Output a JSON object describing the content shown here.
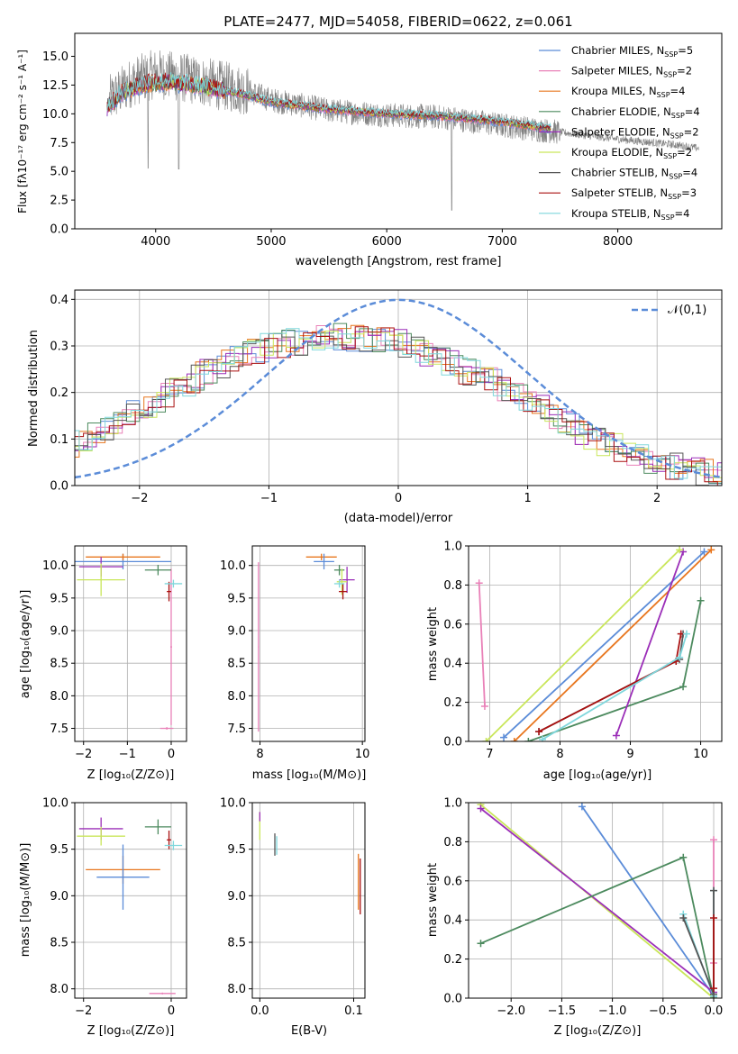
{
  "colors": {
    "chabrier_miles": "#5b8cd8",
    "salpeter_miles": "#e981b8",
    "kroupa_miles": "#e8761e",
    "chabrier_elodie": "#4c8a5e",
    "salpeter_elodie": "#9b2eb8",
    "kroupa_elodie": "#c9e65a",
    "chabrier_stelib": "#555555",
    "salpeter_stelib": "#aa1111",
    "kroupa_stelib": "#7fd7dc",
    "observed": "#808080",
    "normal": "#5b8cd8",
    "grid": "#b0b0b0"
  },
  "chart_data": [
    {
      "id": "spectrum",
      "type": "line",
      "title": "PLATE=2477, MJD=54058, FIBERID=0622, z=0.061",
      "xlabel": "wavelength [Angstrom, rest frame]",
      "ylabel": "Flux [fλ10⁻¹⁷ erg cm⁻² s⁻¹ A⁻¹]",
      "xlim": [
        3300,
        8900
      ],
      "ylim": [
        0,
        17
      ],
      "xticks": [
        4000,
        5000,
        6000,
        7000,
        8000
      ],
      "yticks": [
        0.0,
        2.5,
        5.0,
        7.5,
        10.0,
        12.5,
        15.0
      ],
      "grid": false,
      "legend_position": "top-right",
      "legend": [
        {
          "label": "Chabrier MILES, N",
          "sub": "SSP",
          "n": "=5",
          "color_key": "chabrier_miles"
        },
        {
          "label": "Salpeter MILES, N",
          "sub": "SSP",
          "n": "=2",
          "color_key": "salpeter_miles"
        },
        {
          "label": "Kroupa MILES, N",
          "sub": "SSP",
          "n": "=4",
          "color_key": "kroupa_miles"
        },
        {
          "label": "Chabrier ELODIE, N",
          "sub": "SSP",
          "n": "=4",
          "color_key": "chabrier_elodie"
        },
        {
          "label": "Salpeter ELODIE, N",
          "sub": "SSP",
          "n": "=2",
          "color_key": "salpeter_elodie"
        },
        {
          "label": "Kroupa ELODIE, N",
          "sub": "SSP",
          "n": "=2",
          "color_key": "kroupa_elodie"
        },
        {
          "label": "Chabrier STELIB, N",
          "sub": "SSP",
          "n": "=4",
          "color_key": "chabrier_stelib"
        },
        {
          "label": "Salpeter STELIB, N",
          "sub": "SSP",
          "n": "=3",
          "color_key": "salpeter_stelib"
        },
        {
          "label": "Kroupa STELIB, N",
          "sub": "SSP",
          "n": "=4",
          "color_key": "kroupa_stelib"
        }
      ],
      "observed_trend": {
        "x": [
          3600,
          3800,
          4000,
          4200,
          4500,
          4800,
          5000,
          5500,
          6000,
          6500,
          7000,
          7500,
          8000,
          8500,
          8700
        ],
        "y": [
          11.2,
          12.8,
          13.5,
          13.2,
          12.6,
          12.0,
          11.2,
          10.3,
          9.9,
          9.7,
          9.0,
          8.4,
          7.8,
          7.3,
          7.0
        ]
      },
      "model_trend": {
        "x": [
          3580,
          3700,
          3900,
          4100,
          4400,
          4800,
          5000,
          5500,
          6000,
          6500,
          7000,
          7420
        ],
        "y": [
          10.5,
          11.8,
          12.6,
          12.8,
          12.4,
          11.6,
          11.0,
          10.4,
          10.0,
          9.8,
          9.3,
          8.7
        ]
      }
    },
    {
      "id": "residuals",
      "type": "line",
      "xlabel": "(data-model)/error",
      "ylabel": "Normed distribution",
      "xlim": [
        -2.5,
        2.5
      ],
      "ylim": [
        0,
        0.42
      ],
      "xticks": [
        -2,
        -1,
        0,
        1,
        2
      ],
      "yticks": [
        0.0,
        0.1,
        0.2,
        0.3,
        0.4
      ],
      "grid": true,
      "legend_position": "top-right",
      "legend_label": "𝒩(0,1)",
      "gaussian": {
        "mean": 0,
        "sigma": 1
      },
      "histogram_envelope": {
        "x": [
          -2.5,
          -2.0,
          -1.5,
          -1.0,
          -0.5,
          0.0,
          0.5,
          1.0,
          1.5,
          2.0,
          2.5
        ],
        "y": [
          0.09,
          0.16,
          0.24,
          0.3,
          0.32,
          0.31,
          0.25,
          0.19,
          0.1,
          0.05,
          0.02
        ]
      },
      "bin_width": 0.1
    },
    {
      "id": "age_vs_Z",
      "type": "scatter",
      "xlabel": "Z [log₁₀(Z/Z⊙)]",
      "ylabel": "age  [log₁₀(age/yr)]",
      "xlim": [
        -2.2,
        0.35
      ],
      "ylim": [
        7.3,
        10.3
      ],
      "xticks": [
        -2,
        -1,
        0
      ],
      "yticks": [
        7.5,
        8.0,
        8.5,
        9.0,
        9.5,
        10.0
      ],
      "grid": true,
      "points": [
        {
          "model": "chabrier_miles",
          "x": -1.1,
          "y": 10.06,
          "xerr": 1.1,
          "yerr": 0.12
        },
        {
          "model": "salpeter_miles",
          "x": -0.1,
          "y": 7.5,
          "xerr": 0.15,
          "yerr": 0.02
        },
        {
          "model": "salpeter_miles",
          "x": 0.0,
          "y": 8.75,
          "xerr": 0.02,
          "yerr": 1.2
        },
        {
          "model": "kroupa_miles",
          "x": -1.1,
          "y": 10.13,
          "xerr": 0.85,
          "yerr": 0.05
        },
        {
          "model": "chabrier_elodie",
          "x": -0.3,
          "y": 9.93,
          "xerr": 0.3,
          "yerr": 0.08
        },
        {
          "model": "salpeter_elodie",
          "x": -1.6,
          "y": 9.98,
          "xerr": 0.5,
          "yerr": 0.15
        },
        {
          "model": "kroupa_elodie",
          "x": -1.6,
          "y": 9.78,
          "xerr": 0.55,
          "yerr": 0.25
        },
        {
          "model": "salpeter_stelib",
          "x": -0.05,
          "y": 9.6,
          "xerr": 0.05,
          "yerr": 0.15
        },
        {
          "model": "kroupa_stelib",
          "x": 0.05,
          "y": 9.72,
          "xerr": 0.2,
          "yerr": 0.06
        }
      ]
    },
    {
      "id": "age_vs_mass",
      "type": "scatter",
      "xlabel": "mass [log₁₀(M/M⊙)]",
      "ylabel": "",
      "xlim": [
        7.85,
        10.05
      ],
      "ylim": [
        7.3,
        10.3
      ],
      "xticks": [
        8,
        10
      ],
      "yticks": [
        7.5,
        8.0,
        8.5,
        9.0,
        9.5,
        10.0
      ],
      "grid": true,
      "points": [
        {
          "model": "salpeter_miles",
          "x": 7.97,
          "y": 8.75,
          "xerr": 0.01,
          "yerr": 1.3
        },
        {
          "model": "kroupa_miles",
          "x": 9.2,
          "y": 10.13,
          "xerr": 0.3,
          "yerr": 0.05
        },
        {
          "model": "chabrier_miles",
          "x": 9.25,
          "y": 10.06,
          "xerr": 0.2,
          "yerr": 0.12
        },
        {
          "model": "salpeter_elodie",
          "x": 9.7,
          "y": 9.78,
          "xerr": 0.15,
          "yerr": 0.2
        },
        {
          "model": "chabrier_elodie",
          "x": 9.55,
          "y": 9.93,
          "xerr": 0.1,
          "yerr": 0.08
        },
        {
          "model": "kroupa_elodie",
          "x": 9.6,
          "y": 9.75,
          "xerr": 0.1,
          "yerr": 0.2
        },
        {
          "model": "salpeter_stelib",
          "x": 9.62,
          "y": 9.6,
          "xerr": 0.08,
          "yerr": 0.12
        },
        {
          "model": "kroupa_stelib",
          "x": 9.55,
          "y": 9.72,
          "xerr": 0.1,
          "yerr": 0.06
        }
      ]
    },
    {
      "id": "weight_vs_age",
      "type": "line",
      "xlabel": "age  [log₁₀(age/yr)]",
      "ylabel": "mass weight",
      "xlim": [
        6.7,
        10.3
      ],
      "ylim": [
        0,
        1.0
      ],
      "xticks": [
        7,
        8,
        9,
        10
      ],
      "yticks": [
        0.0,
        0.2,
        0.4,
        0.6,
        0.8,
        1.0
      ],
      "grid": true,
      "series": [
        {
          "model": "chabrier_miles",
          "x": [
            7.2,
            10.05
          ],
          "y": [
            0.02,
            0.97
          ]
        },
        {
          "model": "salpeter_miles",
          "x": [
            6.85,
            6.93
          ],
          "y": [
            0.81,
            0.18
          ]
        },
        {
          "model": "kroupa_miles",
          "x": [
            7.35,
            10.15
          ],
          "y": [
            0.0,
            0.98
          ]
        },
        {
          "model": "chabrier_elodie",
          "x": [
            7.55,
            9.75,
            10.0
          ],
          "y": [
            0.0,
            0.28,
            0.72
          ]
        },
        {
          "model": "salpeter_elodie",
          "x": [
            8.8,
            9.75
          ],
          "y": [
            0.03,
            0.97
          ]
        },
        {
          "model": "kroupa_elodie",
          "x": [
            6.95,
            9.7
          ],
          "y": [
            0.0,
            0.98
          ]
        },
        {
          "model": "chabrier_stelib",
          "x": [
            7.7,
            9.7,
            9.75
          ],
          "y": [
            0.05,
            0.42,
            0.55
          ]
        },
        {
          "model": "salpeter_stelib",
          "x": [
            7.7,
            9.65,
            9.72
          ],
          "y": [
            0.05,
            0.41,
            0.55
          ]
        },
        {
          "model": "kroupa_stelib",
          "x": [
            7.75,
            9.7,
            9.8
          ],
          "y": [
            0.01,
            0.43,
            0.55
          ]
        }
      ]
    },
    {
      "id": "mass_vs_Z",
      "type": "scatter",
      "xlabel": "Z [log₁₀(Z/Z⊙)]",
      "ylabel": "mass [log₁₀(M/M⊙)]",
      "xlim": [
        -2.2,
        0.35
      ],
      "ylim": [
        7.9,
        10.0
      ],
      "xticks": [
        -2,
        0
      ],
      "yticks": [
        8.0,
        8.5,
        9.0,
        9.5,
        10.0
      ],
      "grid": true,
      "points": [
        {
          "model": "salpeter_elodie",
          "x": -1.6,
          "y": 9.72,
          "xerr": 0.5,
          "yerr": 0.12
        },
        {
          "model": "kroupa_elodie",
          "x": -1.6,
          "y": 9.64,
          "xerr": 0.55,
          "yerr": 0.1
        },
        {
          "model": "chabrier_elodie",
          "x": -0.3,
          "y": 9.74,
          "xerr": 0.3,
          "yerr": 0.08
        },
        {
          "model": "salpeter_stelib",
          "x": -0.05,
          "y": 9.6,
          "xerr": 0.05,
          "yerr": 0.1
        },
        {
          "model": "kroupa_stelib",
          "x": 0.05,
          "y": 9.54,
          "xerr": 0.2,
          "yerr": 0.05
        },
        {
          "model": "kroupa_miles",
          "x": -1.1,
          "y": 9.28,
          "xerr": 0.85,
          "yerr": 0.15
        },
        {
          "model": "chabrier_miles",
          "x": -1.1,
          "y": 9.2,
          "xerr": 0.6,
          "yerr": 0.35
        },
        {
          "model": "salpeter_miles",
          "x": -0.2,
          "y": 7.95,
          "xerr": 0.3,
          "yerr": 0.01
        }
      ]
    },
    {
      "id": "mass_vs_ebv",
      "type": "scatter",
      "xlabel": "E(B-V)",
      "ylabel": "",
      "xlim": [
        -0.008,
        0.112
      ],
      "ylim": [
        7.9,
        10.0
      ],
      "xticks": [
        0.0,
        0.1
      ],
      "yticks": [
        8.0,
        8.5,
        9.0,
        9.5,
        10.0
      ],
      "grid": true,
      "points": [
        {
          "model": "kroupa_elodie",
          "x": 0.0,
          "y": 9.75,
          "xerr": 0.0,
          "yerr": 0.15
        },
        {
          "model": "salpeter_elodie",
          "x": 0.0,
          "y": 9.85,
          "xerr": 0.0,
          "yerr": 0.05
        },
        {
          "model": "chabrier_stelib",
          "x": 0.016,
          "y": 9.55,
          "xerr": 0.0,
          "yerr": 0.12
        },
        {
          "model": "kroupa_stelib",
          "x": 0.018,
          "y": 9.54,
          "xerr": 0.0,
          "yerr": 0.1
        },
        {
          "model": "kroupa_miles",
          "x": 0.105,
          "y": 9.15,
          "xerr": 0.0,
          "yerr": 0.3
        },
        {
          "model": "salpeter_stelib",
          "x": 0.107,
          "y": 9.1,
          "xerr": 0.0,
          "yerr": 0.3
        }
      ]
    },
    {
      "id": "weight_vs_Z",
      "type": "line",
      "xlabel": "Z [log₁₀(Z/Z⊙)]",
      "ylabel": "mass weight",
      "xlim": [
        -2.42,
        0.08
      ],
      "ylim": [
        0,
        1.0
      ],
      "xticks": [
        -2.0,
        -1.5,
        -1.0,
        -0.5,
        0.0
      ],
      "yticks": [
        0.0,
        0.2,
        0.4,
        0.6,
        0.8,
        1.0
      ],
      "grid": true,
      "series": [
        {
          "model": "chabrier_miles",
          "x": [
            -1.3,
            0.0
          ],
          "y": [
            0.98,
            0.01
          ]
        },
        {
          "model": "salpeter_miles",
          "x": [
            0.0,
            0.0
          ],
          "y": [
            0.81,
            0.18
          ]
        },
        {
          "model": "kroupa_elodie",
          "x": [
            -2.3,
            0.0
          ],
          "y": [
            0.99,
            0.0
          ]
        },
        {
          "model": "salpeter_elodie",
          "x": [
            -2.3,
            0.0
          ],
          "y": [
            0.97,
            0.03
          ]
        },
        {
          "model": "chabrier_elodie",
          "x": [
            -2.3,
            -0.3,
            0.0
          ],
          "y": [
            0.28,
            0.72,
            0.0
          ]
        },
        {
          "model": "kroupa_stelib",
          "x": [
            -0.3,
            0.0,
            0.0
          ],
          "y": [
            0.43,
            0.01,
            0.55
          ]
        },
        {
          "model": "chabrier_stelib",
          "x": [
            -0.3,
            0.0,
            0.0
          ],
          "y": [
            0.41,
            0.02,
            0.55
          ]
        },
        {
          "model": "salpeter_stelib",
          "x": [
            0.0,
            0.0
          ],
          "y": [
            0.05,
            0.41
          ]
        }
      ]
    }
  ]
}
